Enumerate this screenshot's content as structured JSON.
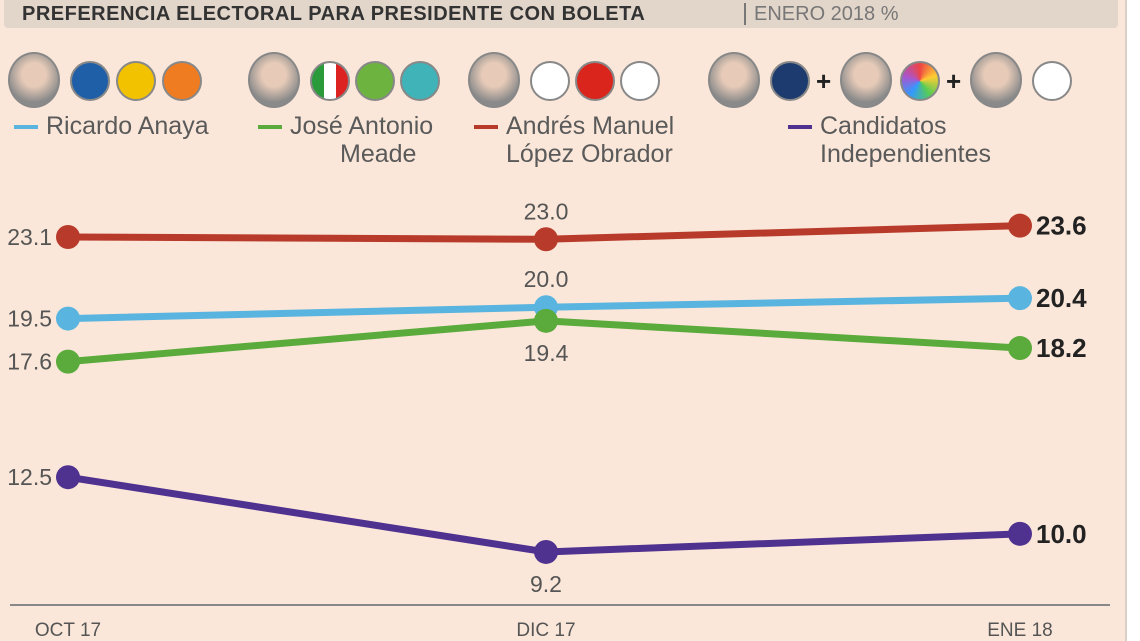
{
  "header": {
    "title": "PREFERENCIA ELECTORAL PARA PRESIDENTE CON BOLETA",
    "subtitle": "ENERO 2018 %"
  },
  "legend": [
    {
      "label_lines": [
        "Ricardo Anaya"
      ],
      "color": "#5ab4e0",
      "logos": [
        "PAN",
        "PRD",
        "MC"
      ]
    },
    {
      "label_lines": [
        "José Antonio",
        "Meade"
      ],
      "color": "#5aaa3c",
      "logos": [
        "PRI",
        "PVEM",
        "NA"
      ]
    },
    {
      "label_lines": [
        "Andrés Manuel",
        "López Obrador"
      ],
      "color": "#b83a2a",
      "logos": [
        "MORENA",
        "PT",
        "PES"
      ]
    },
    {
      "label_lines": [
        "Candidatos",
        "Independientes"
      ],
      "color": "#4f3190",
      "logos": [
        "M",
        "colorful-logo",
        "independent-logo"
      ]
    }
  ],
  "chart_data": {
    "type": "line",
    "categories": [
      "OCT 17",
      "DIC 17",
      "ENE 18"
    ],
    "series": [
      {
        "name": "Andrés Manuel López Obrador",
        "color": "#b83a2a",
        "values": [
          23.1,
          23.0,
          23.6
        ],
        "label_pos": [
          "left",
          "above",
          "right"
        ]
      },
      {
        "name": "Ricardo Anaya",
        "color": "#5ab4e0",
        "values": [
          19.5,
          20.0,
          20.4
        ],
        "label_pos": [
          "left",
          "above",
          "right"
        ]
      },
      {
        "name": "José Antonio Meade",
        "color": "#5aaa3c",
        "values": [
          17.6,
          19.4,
          18.2
        ],
        "label_pos": [
          "left",
          "below",
          "right"
        ]
      },
      {
        "name": "Candidatos Independientes",
        "color": "#4f3190",
        "values": [
          12.5,
          9.2,
          10.0
        ],
        "label_pos": [
          "left",
          "below",
          "right"
        ]
      }
    ],
    "grid": false
  }
}
